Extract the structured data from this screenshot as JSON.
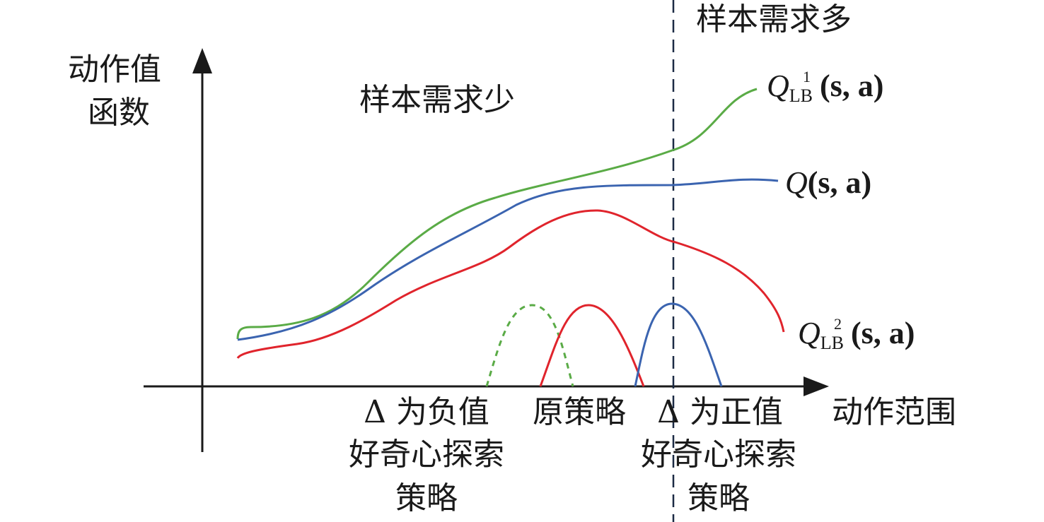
{
  "y_axis_label_line1": "动作值",
  "y_axis_label_line2": "函数",
  "x_axis_label": "动作范围",
  "region_left": "样本需求少",
  "region_right": "样本需求多",
  "curves": {
    "q_lb1": {
      "Q": "Q",
      "sub": "LB",
      "sup": "1",
      "args": "(s, a)",
      "color": "#5aab46"
    },
    "q": {
      "Q": "Q",
      "args": "(s, a)",
      "color": "#3b64b0"
    },
    "q_lb2": {
      "Q": "Q",
      "sub": "LB",
      "sup": "2",
      "args": "(s, a)",
      "color": "#e0242c"
    }
  },
  "policies": {
    "negative": {
      "line1": "Δ 为负值",
      "line2": "好奇心探索",
      "line3": "策略",
      "color": "#5aab46"
    },
    "original": {
      "label": "原策略",
      "color": "#e0242c"
    },
    "positive": {
      "line1": "Δ 为正值",
      "line2": "好奇心探索",
      "line3": "策略",
      "color": "#3b64b0"
    }
  },
  "colors": {
    "axis": "#1a1a1a",
    "divider": "#1c2a44"
  }
}
